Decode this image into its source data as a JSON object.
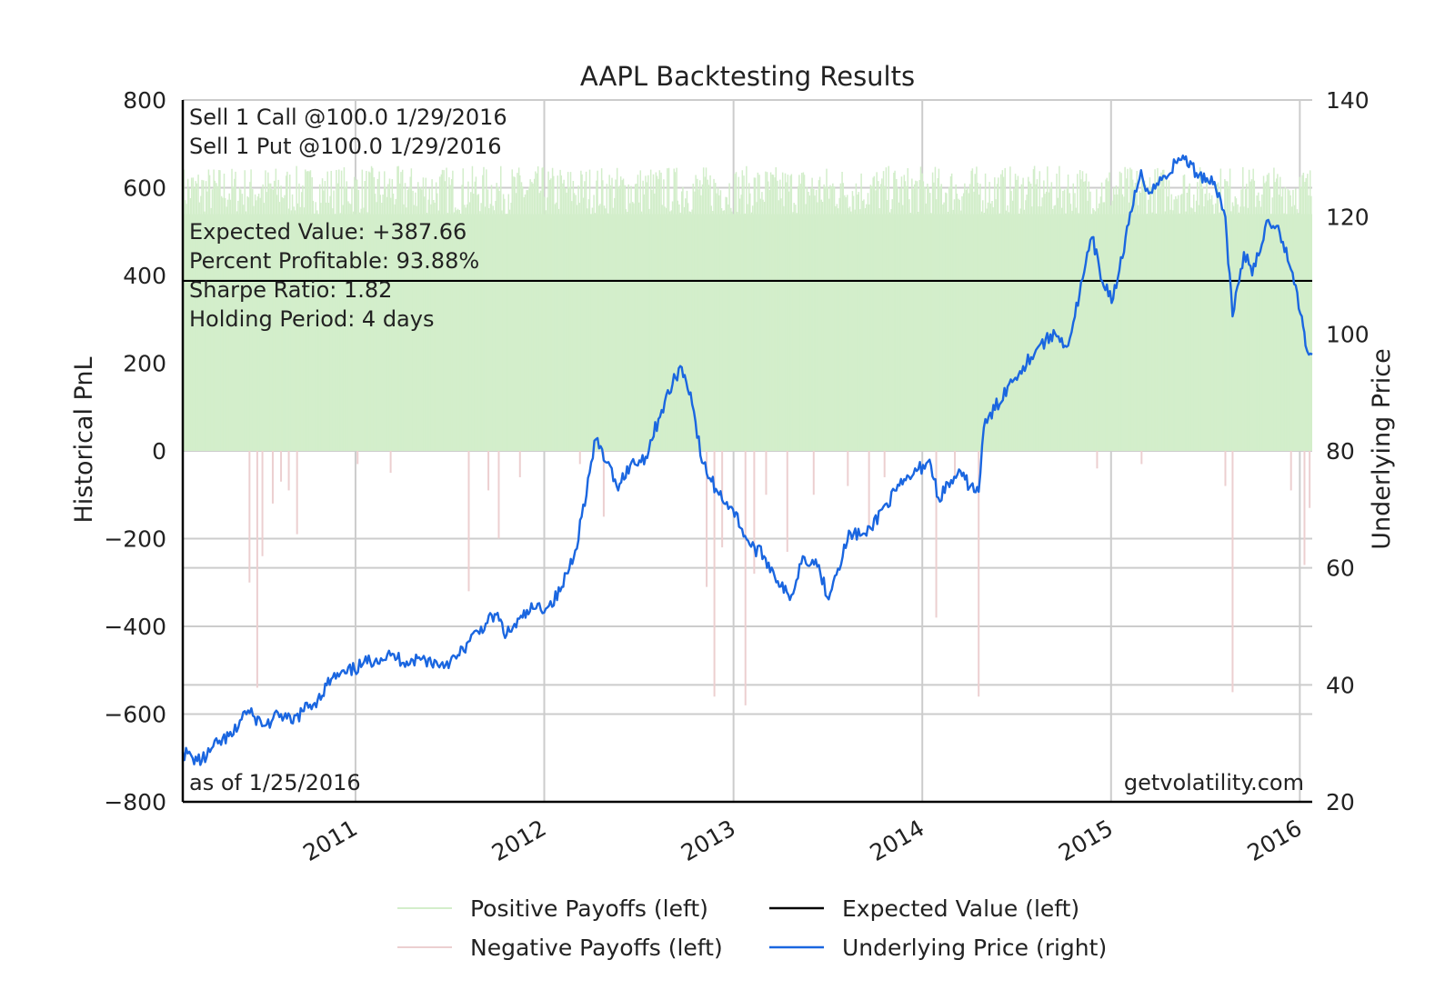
{
  "chart_data": {
    "type": "line",
    "title": "AAPL Backtesting Results",
    "ylabel_left": "Historical PnL",
    "ylabel_right": "Underlying Price",
    "x_range": [
      "2010-02-01",
      "2016-01-25"
    ],
    "x_tick_labels": [
      "2011",
      "2012",
      "2013",
      "2014",
      "2015",
      "2016"
    ],
    "x_tick_dates": [
      "2011-01-01",
      "2012-01-01",
      "2013-01-01",
      "2014-01-01",
      "2015-01-01",
      "2016-01-01"
    ],
    "ylim_left": [
      -800,
      800
    ],
    "yticks_left": [
      800,
      600,
      400,
      200,
      0,
      -200,
      -400,
      -600,
      -800
    ],
    "ylim_right": [
      20,
      140
    ],
    "yticks_right": [
      140,
      120,
      100,
      80,
      60,
      40,
      20
    ],
    "grid": true,
    "annotations": {
      "strategy": [
        "Sell 1 Call @100.0 1/29/2016",
        "Sell 1 Put @100.0 1/29/2016"
      ],
      "stats": [
        "Expected Value: +387.66",
        "Percent Profitable: 93.88%",
        "Sharpe Ratio: 1.82",
        "Holding Period: 4 days"
      ],
      "as_of": "as of 1/25/2016",
      "source": "getvolatility.com"
    },
    "expected_value": 387.66,
    "colors": {
      "positive": "#d3eecb",
      "negative": "#eccfd0",
      "expected": "#000000",
      "price": "#1a66e0",
      "grid": "#cccccc"
    },
    "legend_placement": "bottom",
    "legend": {
      "positive": "Positive Payoffs (left)",
      "expected": "Expected Value (left)",
      "negative": "Negative Payoffs (left)",
      "price": "Underlying Price (right)"
    },
    "positive_payoff_band": [
      540,
      650
    ],
    "negative_payoffs": [
      [
        "2010-06-10",
        -300
      ],
      [
        "2010-06-25",
        -540
      ],
      [
        "2010-07-05",
        -240
      ],
      [
        "2010-07-25",
        -120
      ],
      [
        "2010-08-10",
        -70
      ],
      [
        "2010-08-25",
        -90
      ],
      [
        "2010-09-10",
        -190
      ],
      [
        "2011-01-05",
        -30
      ],
      [
        "2011-03-10",
        -50
      ],
      [
        "2011-08-08",
        -320
      ],
      [
        "2011-09-15",
        -90
      ],
      [
        "2011-10-05",
        -200
      ],
      [
        "2011-11-15",
        -60
      ],
      [
        "2012-03-10",
        -30
      ],
      [
        "2012-04-25",
        -150
      ],
      [
        "2012-11-10",
        -310
      ],
      [
        "2012-11-25",
        -560
      ],
      [
        "2012-12-10",
        -220
      ],
      [
        "2013-01-24",
        -580
      ],
      [
        "2013-02-10",
        -280
      ],
      [
        "2013-03-05",
        -100
      ],
      [
        "2013-04-15",
        -230
      ],
      [
        "2013-06-05",
        -100
      ],
      [
        "2013-08-10",
        -80
      ],
      [
        "2013-09-20",
        -180
      ],
      [
        "2013-10-20",
        -60
      ],
      [
        "2014-01-28",
        -380
      ],
      [
        "2014-03-05",
        -60
      ],
      [
        "2014-04-20",
        -560
      ],
      [
        "2014-12-05",
        -40
      ],
      [
        "2015-03-01",
        -30
      ],
      [
        "2015-08-10",
        -80
      ],
      [
        "2015-08-24",
        -550
      ],
      [
        "2015-12-15",
        -90
      ],
      [
        "2016-01-10",
        -260
      ],
      [
        "2016-01-20",
        -130
      ]
    ],
    "price_series": [
      [
        "2010-02-01",
        28.5
      ],
      [
        "2010-02-20",
        27.5
      ],
      [
        "2010-03-10",
        27.0
      ],
      [
        "2010-04-10",
        30.0
      ],
      [
        "2010-05-10",
        31.5
      ],
      [
        "2010-06-01",
        35.5
      ],
      [
        "2010-06-20",
        34.5
      ],
      [
        "2010-07-10",
        33.0
      ],
      [
        "2010-08-10",
        35.0
      ],
      [
        "2010-08-30",
        33.5
      ],
      [
        "2010-09-20",
        35.5
      ],
      [
        "2010-10-20",
        37.5
      ],
      [
        "2010-11-15",
        41.0
      ],
      [
        "2010-12-15",
        42.0
      ],
      [
        "2011-01-15",
        43.5
      ],
      [
        "2011-02-10",
        44.5
      ],
      [
        "2011-03-10",
        45.0
      ],
      [
        "2011-04-10",
        44.0
      ],
      [
        "2011-05-10",
        44.5
      ],
      [
        "2011-06-15",
        43.5
      ],
      [
        "2011-07-15",
        44.5
      ],
      [
        "2011-08-10",
        47.5
      ],
      [
        "2011-09-10",
        50.5
      ],
      [
        "2011-09-30",
        52.0
      ],
      [
        "2011-10-20",
        48.5
      ],
      [
        "2011-11-20",
        51.5
      ],
      [
        "2011-12-10",
        53.0
      ],
      [
        "2012-01-10",
        53.5
      ],
      [
        "2012-02-01",
        56.0
      ],
      [
        "2012-03-01",
        63.0
      ],
      [
        "2012-04-10",
        82.0
      ],
      [
        "2012-05-01",
        78.0
      ],
      [
        "2012-05-20",
        74.0
      ],
      [
        "2012-06-15",
        77.5
      ],
      [
        "2012-07-15",
        79.0
      ],
      [
        "2012-08-15",
        87.0
      ],
      [
        "2012-09-20",
        94.5
      ],
      [
        "2012-10-10",
        90.0
      ],
      [
        "2012-11-01",
        78.0
      ],
      [
        "2012-12-01",
        73.0
      ],
      [
        "2012-12-31",
        70.0
      ],
      [
        "2013-02-01",
        64.0
      ],
      [
        "2013-03-01",
        62.0
      ],
      [
        "2013-04-20",
        54.5
      ],
      [
        "2013-05-15",
        62.0
      ],
      [
        "2013-06-15",
        60.5
      ],
      [
        "2013-07-01",
        55.0
      ],
      [
        "2013-08-15",
        66.0
      ],
      [
        "2013-09-15",
        65.5
      ],
      [
        "2013-10-15",
        70.0
      ],
      [
        "2013-11-30",
        75.0
      ],
      [
        "2013-12-15",
        76.0
      ],
      [
        "2014-01-15",
        78.5
      ],
      [
        "2014-02-01",
        72.0
      ],
      [
        "2014-03-10",
        76.0
      ],
      [
        "2014-04-20",
        73.0
      ],
      [
        "2014-04-30",
        84.0
      ],
      [
        "2014-06-15",
        91.0
      ],
      [
        "2014-07-15",
        94.5
      ],
      [
        "2014-08-15",
        98.0
      ],
      [
        "2014-09-15",
        100.0
      ],
      [
        "2014-10-10",
        98.0
      ],
      [
        "2014-10-20",
        102.0
      ],
      [
        "2014-11-25",
        116.5
      ],
      [
        "2014-12-15",
        109.0
      ],
      [
        "2015-01-05",
        106.0
      ],
      [
        "2015-02-10",
        121.0
      ],
      [
        "2015-02-28",
        128.0
      ],
      [
        "2015-03-15",
        124.0
      ],
      [
        "2015-04-15",
        127.0
      ],
      [
        "2015-05-20",
        130.5
      ],
      [
        "2015-06-15",
        127.5
      ],
      [
        "2015-07-20",
        126.0
      ],
      [
        "2015-08-10",
        120.0
      ],
      [
        "2015-08-24",
        103.0
      ],
      [
        "2015-09-15",
        114.0
      ],
      [
        "2015-10-01",
        110.0
      ],
      [
        "2015-11-01",
        119.5
      ],
      [
        "2015-11-20",
        118.5
      ],
      [
        "2015-12-15",
        111.0
      ],
      [
        "2016-01-05",
        103.0
      ],
      [
        "2016-01-12",
        98.0
      ],
      [
        "2016-01-25",
        96.5
      ]
    ]
  }
}
